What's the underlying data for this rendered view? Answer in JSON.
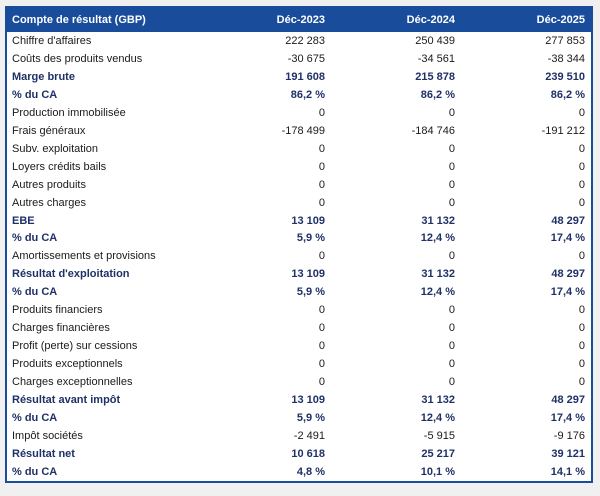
{
  "colors": {
    "header_bg": "#1A4C9C",
    "border": "#1A4C9C",
    "bold_text": "#1F3166",
    "text": "#1A1A1A",
    "page_bg": "#F0F0F0"
  },
  "table": {
    "title_column": "Compte de résultat (GBP)",
    "columns": [
      "Déc-2023",
      "Déc-2024",
      "Déc-2025"
    ],
    "rows": [
      {
        "label": "Chiffre d'affaires",
        "bold": false,
        "values": [
          "222 283",
          "250 439",
          "277 853"
        ]
      },
      {
        "label": "Coûts des produits vendus",
        "bold": false,
        "values": [
          "-30 675",
          "-34 561",
          "-38 344"
        ]
      },
      {
        "label": "Marge brute",
        "bold": true,
        "values": [
          "191 608",
          "215 878",
          "239 510"
        ]
      },
      {
        "label": "% du CA",
        "bold": true,
        "values": [
          "86,2 %",
          "86,2 %",
          "86,2 %"
        ]
      },
      {
        "label": "Production immobilisée",
        "bold": false,
        "values": [
          "0",
          "0",
          "0"
        ]
      },
      {
        "label": "Frais généraux",
        "bold": false,
        "values": [
          "-178 499",
          "-184 746",
          "-191 212"
        ]
      },
      {
        "label": "Subv. exploitation",
        "bold": false,
        "values": [
          "0",
          "0",
          "0"
        ]
      },
      {
        "label": "Loyers crédits bails",
        "bold": false,
        "values": [
          "0",
          "0",
          "0"
        ]
      },
      {
        "label": "Autres produits",
        "bold": false,
        "values": [
          "0",
          "0",
          "0"
        ]
      },
      {
        "label": "Autres charges",
        "bold": false,
        "values": [
          "0",
          "0",
          "0"
        ]
      },
      {
        "label": "EBE",
        "bold": true,
        "values": [
          "13 109",
          "31 132",
          "48 297"
        ]
      },
      {
        "label": "% du CA",
        "bold": true,
        "values": [
          "5,9 %",
          "12,4 %",
          "17,4 %"
        ]
      },
      {
        "label": "Amortissements et provisions",
        "bold": false,
        "values": [
          "0",
          "0",
          "0"
        ]
      },
      {
        "label": "Résultat d'exploitation",
        "bold": true,
        "values": [
          "13 109",
          "31 132",
          "48 297"
        ]
      },
      {
        "label": "% du CA",
        "bold": true,
        "values": [
          "5,9 %",
          "12,4 %",
          "17,4 %"
        ]
      },
      {
        "label": "Produits financiers",
        "bold": false,
        "values": [
          "0",
          "0",
          "0"
        ]
      },
      {
        "label": "Charges financières",
        "bold": false,
        "values": [
          "0",
          "0",
          "0"
        ]
      },
      {
        "label": "Profit (perte) sur cessions",
        "bold": false,
        "values": [
          "0",
          "0",
          "0"
        ]
      },
      {
        "label": "Produits exceptionnels",
        "bold": false,
        "values": [
          "0",
          "0",
          "0"
        ]
      },
      {
        "label": "Charges exceptionnelles",
        "bold": false,
        "values": [
          "0",
          "0",
          "0"
        ]
      },
      {
        "label": "Résultat avant impôt",
        "bold": true,
        "values": [
          "13 109",
          "31 132",
          "48 297"
        ]
      },
      {
        "label": "% du CA",
        "bold": true,
        "values": [
          "5,9 %",
          "12,4 %",
          "17,4 %"
        ]
      },
      {
        "label": "Impôt sociétés",
        "bold": false,
        "values": [
          "-2 491",
          "-5 915",
          "-9 176"
        ]
      },
      {
        "label": "Résultat net",
        "bold": true,
        "values": [
          "10 618",
          "25 217",
          "39 121"
        ]
      },
      {
        "label": "% du CA",
        "bold": true,
        "values": [
          "4,8 %",
          "10,1 %",
          "14,1 %"
        ]
      }
    ]
  }
}
